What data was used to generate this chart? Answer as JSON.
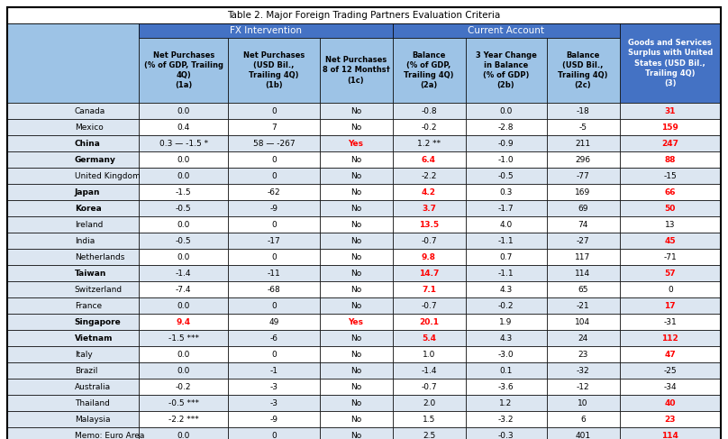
{
  "title": "Table 2. Major Foreign Trading Partners Evaluation Criteria",
  "col_headers": [
    "",
    "Net Purchases\n(% of GDP, Trailing\n4Q)\n(1a)",
    "Net Purchases\n(USD Bil.,\nTrailing 4Q)\n(1b)",
    "Net Purchases\n8 of 12 Months†\n(1c)",
    "Balance\n(% of GDP,\nTrailing 4Q)\n(2a)",
    "3 Year Change\nin Balance\n(% of GDP)\n(2b)",
    "Balance\n(USD Bil.,\nTrailing 4Q)\n(2c)",
    "Goods and Services\nSurplus with United\nStates (USD Bil.,\nTrailing 4Q)\n(3)"
  ],
  "rows": [
    {
      "country": "Canada",
      "bold": false,
      "c1": "0.0",
      "c2": "0",
      "c3": "No",
      "c4": "-0.8",
      "c5": "0.0",
      "c6": "-18",
      "c7": "31",
      "r1": false,
      "r4": false,
      "r7": true
    },
    {
      "country": "Mexico",
      "bold": false,
      "c1": "0.4",
      "c2": "7",
      "c3": "No",
      "c4": "-0.2",
      "c5": "-2.8",
      "c6": "-5",
      "c7": "159",
      "r1": false,
      "r4": false,
      "r7": true
    },
    {
      "country": "China",
      "bold": true,
      "c1": "0.3 — -1.5 *",
      "c2": "58 — -267",
      "c3": "Yes",
      "c4": "1.2 **",
      "c5": "-0.9",
      "c6": "211",
      "c7": "247",
      "r1": false,
      "r4": false,
      "r7": true
    },
    {
      "country": "Germany",
      "bold": true,
      "c1": "0.0",
      "c2": "0",
      "c3": "No",
      "c4": "6.4",
      "c5": "-1.0",
      "c6": "296",
      "c7": "88",
      "r1": false,
      "r4": true,
      "r7": true
    },
    {
      "country": "United Kingdom",
      "bold": false,
      "c1": "0.0",
      "c2": "0",
      "c3": "No",
      "c4": "-2.2",
      "c5": "-0.5",
      "c6": "-77",
      "c7": "-15",
      "r1": false,
      "r4": false,
      "r7": false
    },
    {
      "country": "Japan",
      "bold": true,
      "c1": "-1.5",
      "c2": "-62",
      "c3": "No",
      "c4": "4.2",
      "c5": "0.3",
      "c6": "169",
      "c7": "66",
      "r1": false,
      "r4": true,
      "r7": true
    },
    {
      "country": "Korea",
      "bold": true,
      "c1": "-0.5",
      "c2": "-9",
      "c3": "No",
      "c4": "3.7",
      "c5": "-1.7",
      "c6": "69",
      "c7": "50",
      "r1": false,
      "r4": true,
      "r7": true
    },
    {
      "country": "Ireland",
      "bold": false,
      "c1": "0.0",
      "c2": "0",
      "c3": "No",
      "c4": "13.5",
      "c5": "4.0",
      "c6": "74",
      "c7": "13",
      "r1": false,
      "r4": true,
      "r7": false
    },
    {
      "country": "India",
      "bold": false,
      "c1": "-0.5",
      "c2": "-17",
      "c3": "No",
      "c4": "-0.7",
      "c5": "-1.1",
      "c6": "-27",
      "c7": "45",
      "r1": false,
      "r4": false,
      "r7": true
    },
    {
      "country": "Netherlands",
      "bold": false,
      "c1": "0.0",
      "c2": "0",
      "c3": "No",
      "c4": "9.8",
      "c5": "0.7",
      "c6": "117",
      "c7": "-71",
      "r1": false,
      "r4": true,
      "r7": false
    },
    {
      "country": "Taiwan",
      "bold": true,
      "c1": "-1.4",
      "c2": "-11",
      "c3": "No",
      "c4": "14.7",
      "c5": "-1.1",
      "c6": "114",
      "c7": "57",
      "r1": false,
      "r4": true,
      "r7": true
    },
    {
      "country": "Switzerland",
      "bold": false,
      "c1": "-7.4",
      "c2": "-68",
      "c3": "No",
      "c4": "7.1",
      "c5": "4.3",
      "c6": "65",
      "c7": "0",
      "r1": false,
      "r4": true,
      "r7": false
    },
    {
      "country": "France",
      "bold": false,
      "c1": "0.0",
      "c2": "0",
      "c3": "No",
      "c4": "-0.7",
      "c5": "-0.2",
      "c6": "-21",
      "c7": "17",
      "r1": false,
      "r4": false,
      "r7": true
    },
    {
      "country": "Singapore",
      "bold": true,
      "c1": "9.4",
      "c2": "49",
      "c3": "Yes",
      "c4": "20.1",
      "c5": "1.9",
      "c6": "104",
      "c7": "-31",
      "r1": true,
      "r4": true,
      "r7": false
    },
    {
      "country": "Vietnam",
      "bold": true,
      "c1": "-1.5 ***",
      "c2": "-6",
      "c3": "No",
      "c4": "5.4",
      "c5": "4.3",
      "c6": "24",
      "c7": "112",
      "r1": false,
      "r4": true,
      "r7": true
    },
    {
      "country": "Italy",
      "bold": false,
      "c1": "0.0",
      "c2": "0",
      "c3": "No",
      "c4": "1.0",
      "c5": "-3.0",
      "c6": "23",
      "c7": "47",
      "r1": false,
      "r4": false,
      "r7": true
    },
    {
      "country": "Brazil",
      "bold": false,
      "c1": "0.0",
      "c2": "-1",
      "c3": "No",
      "c4": "-1.4",
      "c5": "0.1",
      "c6": "-32",
      "c7": "-25",
      "r1": false,
      "r4": false,
      "r7": false
    },
    {
      "country": "Australia",
      "bold": false,
      "c1": "-0.2",
      "c2": "-3",
      "c3": "No",
      "c4": "-0.7",
      "c5": "-3.6",
      "c6": "-12",
      "c7": "-34",
      "r1": false,
      "r4": false,
      "r7": false
    },
    {
      "country": "Thailand",
      "bold": false,
      "c1": "-0.5 ***",
      "c2": "-3",
      "c3": "No",
      "c4": "2.0",
      "c5": "1.2",
      "c6": "10",
      "c7": "40",
      "r1": false,
      "r4": false,
      "r7": true
    },
    {
      "country": "Malaysia",
      "bold": false,
      "c1": "-2.2 ***",
      "c2": "-9",
      "c3": "No",
      "c4": "1.5",
      "c5": "-3.2",
      "c6": "6",
      "c7": "23",
      "r1": false,
      "r4": false,
      "r7": true
    },
    {
      "country": "Memo: Euro Area",
      "bold": false,
      "c1": "0.0",
      "c2": "0",
      "c3": "No",
      "c4": "2.5",
      "c5": "-0.3",
      "c6": "401",
      "c7": "114",
      "r1": false,
      "r4": false,
      "r7": true
    }
  ],
  "colors": {
    "header_group_bg": "#4472c4",
    "header_group_text": "#ffffff",
    "header_sub_bg": "#9dc3e6",
    "bilateral_header_bg": "#4472c4",
    "bilateral_sub_bg": "#4472c4",
    "bilateral_sub_text": "#ffffff",
    "row_light_bg": "#dce6f1",
    "row_white_bg": "#ffffff",
    "country_col_bg": "#dce6f1",
    "red_text": "#ff0000",
    "black_text": "#000000"
  }
}
